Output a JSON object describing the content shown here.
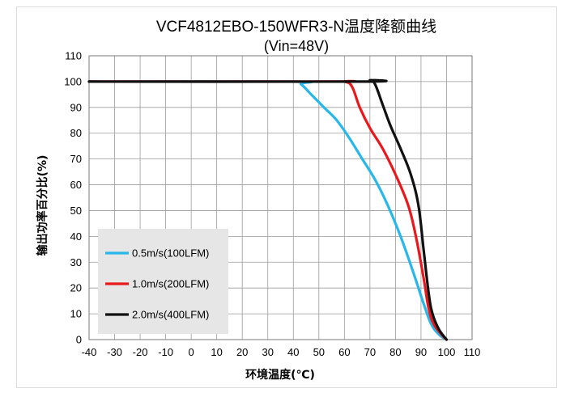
{
  "chart_data": {
    "type": "line",
    "title": "VCF4812EBO-150WFR3-N温度降额曲线",
    "subtitle": "(Vin=48V)",
    "xlabel": "环境温度(℃)",
    "ylabel": "输出功率百分比(%)",
    "xlim": [
      -40,
      110
    ],
    "ylim": [
      0,
      110
    ],
    "xticks": [
      "-40",
      "-30",
      "-20",
      "-10",
      "0",
      "10",
      "20",
      "30",
      "40",
      "50",
      "60",
      "70",
      "80",
      "90",
      "100",
      "110"
    ],
    "yticks": [
      "0",
      "10",
      "20",
      "30",
      "40",
      "50",
      "60",
      "70",
      "80",
      "90",
      "100",
      "110"
    ],
    "grid": true,
    "legend_position": "bottom-left",
    "series": [
      {
        "name": "0.5m/s(100LFM)",
        "color": "#29b6e8",
        "points": [
          [
            -40,
            100
          ],
          [
            40,
            100
          ],
          [
            43,
            99
          ],
          [
            47,
            95
          ],
          [
            52,
            90
          ],
          [
            57,
            85
          ],
          [
            62,
            78
          ],
          [
            67,
            70
          ],
          [
            72,
            62
          ],
          [
            77,
            52
          ],
          [
            82,
            40
          ],
          [
            87,
            26
          ],
          [
            91,
            14
          ],
          [
            94,
            6
          ],
          [
            97,
            2
          ],
          [
            100,
            0
          ]
        ]
      },
      {
        "name": "1.0m/s(200LFM)",
        "color": "#e8191d",
        "points": [
          [
            -40,
            100
          ],
          [
            55,
            100
          ],
          [
            60,
            100
          ],
          [
            63,
            98
          ],
          [
            66,
            90
          ],
          [
            70,
            82
          ],
          [
            75,
            74
          ],
          [
            80,
            64
          ],
          [
            85,
            52
          ],
          [
            88,
            40
          ],
          [
            91,
            24
          ],
          [
            93,
            12
          ],
          [
            95,
            6
          ],
          [
            98,
            2
          ],
          [
            100,
            0
          ]
        ]
      },
      {
        "name": "2.0m/s(400LFM)",
        "color": "#111111",
        "points": [
          [
            -40,
            100
          ],
          [
            67,
            100
          ],
          [
            70,
            100.5
          ],
          [
            72,
            99
          ],
          [
            75,
            91
          ],
          [
            78,
            83
          ],
          [
            82,
            74
          ],
          [
            86,
            64
          ],
          [
            89,
            52
          ],
          [
            91,
            35
          ],
          [
            93,
            18
          ],
          [
            94.5,
            10
          ],
          [
            97,
            4
          ],
          [
            100,
            0
          ]
        ]
      }
    ]
  }
}
